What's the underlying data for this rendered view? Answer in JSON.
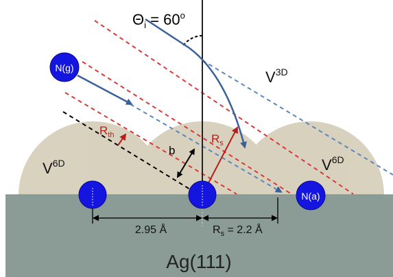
{
  "title": "Ag(111)",
  "angle_label": {
    "symbol": "Θ",
    "sub": "i",
    "rest": " = 60",
    "sup": "o"
  },
  "regions": {
    "v3d": {
      "base": "V",
      "sup": "3D"
    },
    "v6d_left": {
      "base": "V",
      "sup": "6D"
    },
    "v6d_right": {
      "base": "V",
      "sup": "6D"
    }
  },
  "atoms": {
    "gas": "N(g)",
    "adsorbed": "N(a)"
  },
  "labels": {
    "rth": {
      "base": "R",
      "sub": "th"
    },
    "rs": {
      "base": "R",
      "sub": "s"
    },
    "b": "b"
  },
  "dimensions": {
    "spacing": "2.95 Å",
    "rs_value": {
      "base": "R",
      "sub": "s",
      "rest": " = 2.2 Å"
    }
  },
  "colors": {
    "surface": "#8a9c95",
    "sphere": "#cdc5ad",
    "atom": "#1515e0",
    "red": "#d83a3a",
    "blue_dash": "#5a86c0",
    "arrow_blue": "#3a609a",
    "dark_red": "#b81c1c"
  }
}
